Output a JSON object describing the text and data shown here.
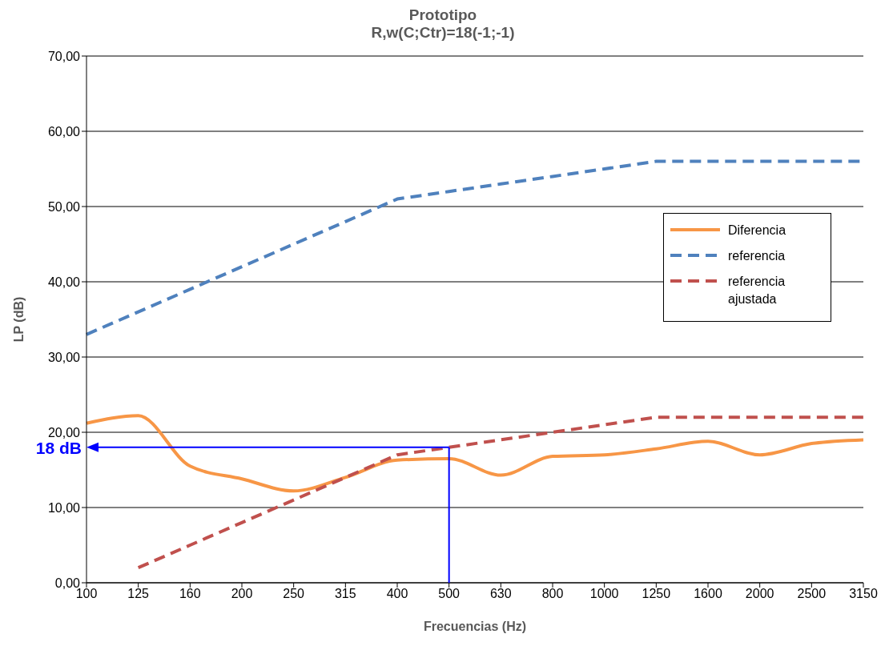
{
  "chart_data": {
    "type": "line",
    "title": "Prototipo",
    "subtitle": "R,w(C;Ctr)=18(-1;-1)",
    "xlabel": "Frecuencias (Hz)",
    "ylabel": "LP (dB)",
    "categories": [
      "100",
      "125",
      "160",
      "200",
      "250",
      "315",
      "400",
      "500",
      "630",
      "800",
      "1000",
      "1250",
      "1600",
      "2000",
      "2500",
      "3150"
    ],
    "series": [
      {
        "name": "Diferencia",
        "color": "#f79646",
        "line_style": "solid",
        "values": [
          21.2,
          22.2,
          15.5,
          13.8,
          12.2,
          14,
          16.3,
          16.5,
          14.3,
          16.8,
          17,
          17.8,
          18.8,
          17,
          18.5,
          19
        ]
      },
      {
        "name": "referencia",
        "color": "#4f81bd",
        "line_style": "dashed",
        "values": [
          33,
          36,
          39,
          42,
          45,
          48,
          51,
          52,
          53,
          54,
          55,
          56,
          56,
          56,
          56,
          56
        ]
      },
      {
        "name": "referencia ajustada",
        "color": "#c0504d",
        "line_style": "dashed",
        "values": [
          null,
          2,
          5,
          8,
          11,
          14,
          17,
          18,
          19,
          20,
          21,
          22,
          22,
          22,
          22,
          22
        ]
      }
    ],
    "ylim": [
      0,
      70
    ],
    "yticks": [
      {
        "value": 0,
        "label": "0,00"
      },
      {
        "value": 10,
        "label": "10,00"
      },
      {
        "value": 20,
        "label": "20,00"
      },
      {
        "value": 30,
        "label": "30,00"
      },
      {
        "value": 40,
        "label": "40,00"
      },
      {
        "value": 50,
        "label": "50,00"
      },
      {
        "value": 60,
        "label": "60,00"
      },
      {
        "value": 70,
        "label": "70,00"
      }
    ],
    "grid": "y",
    "legend": "right",
    "marker": "none",
    "annotations": [
      {
        "text": "18 dB",
        "x": "500",
        "y": 18
      }
    ]
  }
}
